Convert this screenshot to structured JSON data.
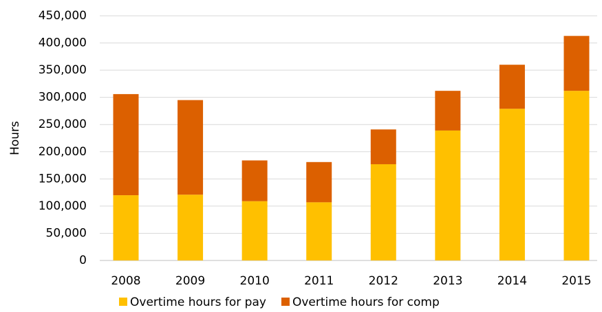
{
  "chart_data": {
    "type": "stacked_bar",
    "y_label": "Hours",
    "categories": [
      "2008",
      "2009",
      "2010",
      "2011",
      "2012",
      "2013",
      "2014",
      "2015"
    ],
    "series": [
      {
        "name": "Overtime hours for pay",
        "color": "#ffc000",
        "values": [
          120000,
          121000,
          109000,
          107000,
          177000,
          239000,
          279000,
          312000
        ]
      },
      {
        "name": "Overtime hours for comp",
        "color": "#dc6000",
        "values": [
          186000,
          174000,
          75000,
          74000,
          64000,
          73000,
          81000,
          101000
        ]
      }
    ],
    "ylim": [
      0,
      450000
    ],
    "yticks": [
      0,
      {
        "value": 50000,
        "label": "50,000"
      },
      {
        "value": 100000,
        "label": "100,000"
      },
      {
        "value": 150000,
        "label": "150,000"
      },
      {
        "value": 200000,
        "label": "200,000"
      },
      {
        "value": 250000,
        "label": "250,000"
      },
      {
        "value": 300000,
        "label": "300,000"
      },
      {
        "value": 350000,
        "label": "350,000"
      },
      {
        "value": 400000,
        "label": "400,000"
      },
      {
        "value": 450000,
        "label": "450,000"
      }
    ],
    "grid": true,
    "legend": "bottom"
  }
}
